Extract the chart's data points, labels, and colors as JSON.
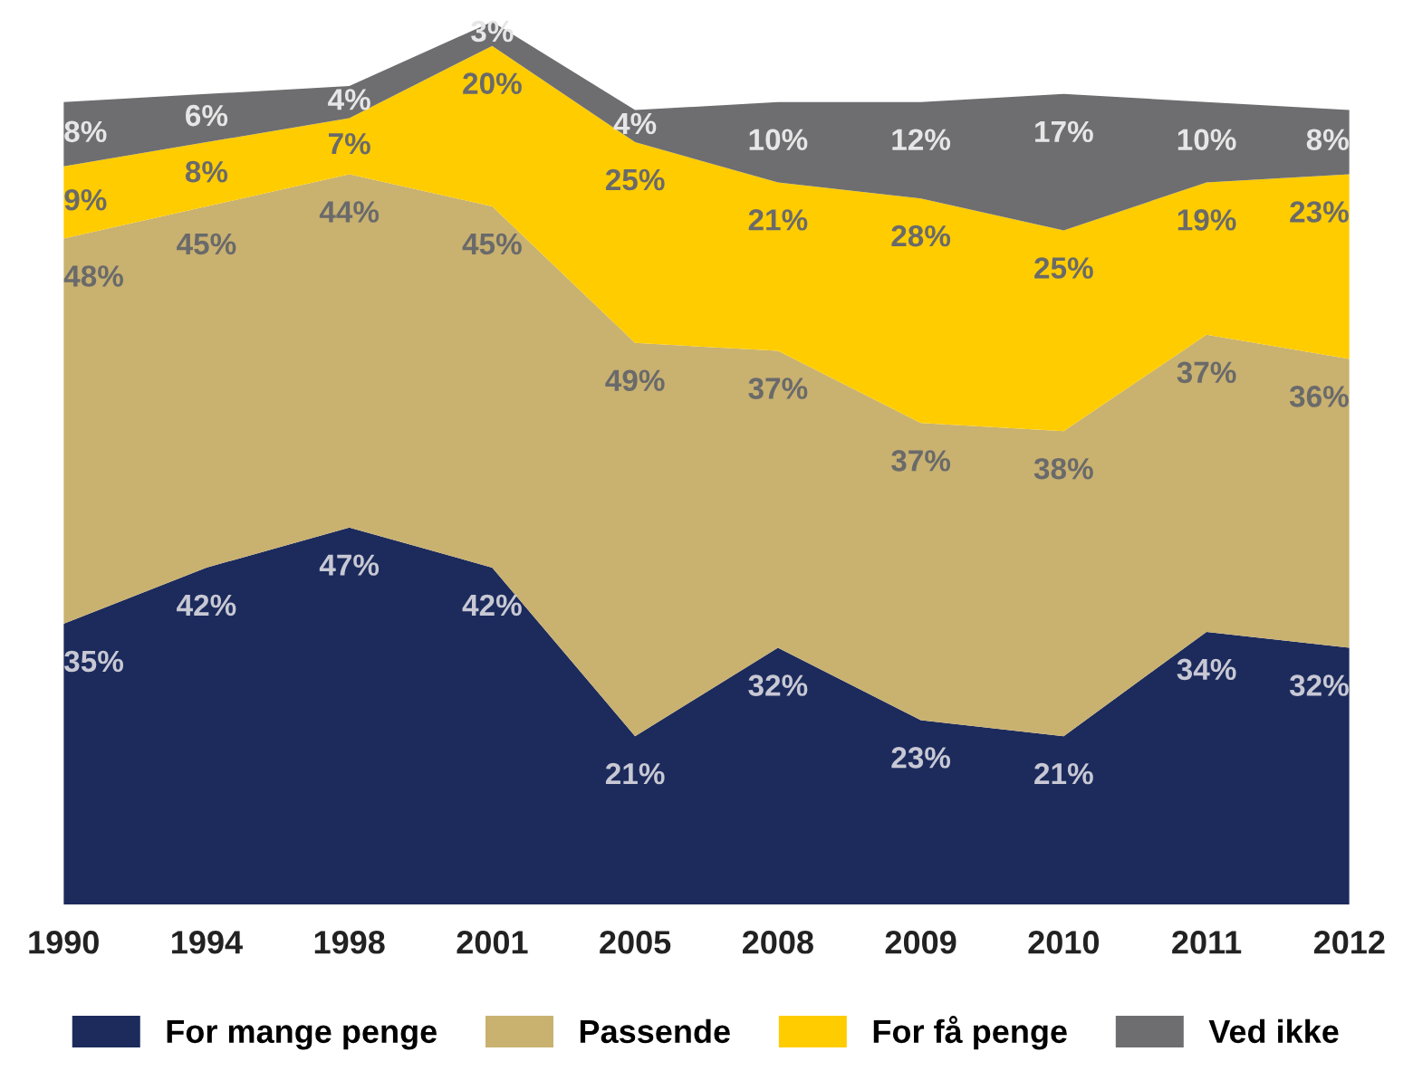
{
  "chart_data": {
    "type": "area",
    "stacked": true,
    "categories": [
      "1990",
      "1994",
      "1998",
      "2001",
      "2005",
      "2008",
      "2009",
      "2010",
      "2011",
      "2012"
    ],
    "series": [
      {
        "name": "For mange penge",
        "color": "#1c2b5c",
        "values": [
          35,
          42,
          47,
          42,
          21,
          32,
          23,
          21,
          34,
          32
        ],
        "value_labels": [
          "35%",
          "42%",
          "47%",
          "42%",
          "21%",
          "32%",
          "23%",
          "21%",
          "34%",
          "32%"
        ]
      },
      {
        "name": "Passende",
        "color": "#c9b170",
        "values": [
          48,
          45,
          44,
          45,
          49,
          37,
          37,
          38,
          37,
          36
        ],
        "value_labels": [
          "48%",
          "45%",
          "44%",
          "45%",
          "49%",
          "37%",
          "37%",
          "38%",
          "37%",
          "36%"
        ]
      },
      {
        "name": "For få penge",
        "color": "#ffcc00",
        "values": [
          9,
          8,
          7,
          20,
          25,
          21,
          28,
          25,
          19,
          23
        ],
        "value_labels": [
          "9%",
          "8%",
          "7%",
          "20%",
          "25%",
          "21%",
          "28%",
          "25%",
          "19%",
          "23%"
        ]
      },
      {
        "name": "Ved ikke",
        "color": "#6e6e70",
        "values": [
          8,
          6,
          4,
          3,
          4,
          10,
          12,
          17,
          10,
          8
        ],
        "value_labels": [
          "8%",
          "6%",
          "4%",
          "3%",
          "4%",
          "10%",
          "12%",
          "17%",
          "10%",
          "8%"
        ]
      }
    ],
    "legend": "bottom",
    "tick_labels": "x",
    "grid": false
  }
}
